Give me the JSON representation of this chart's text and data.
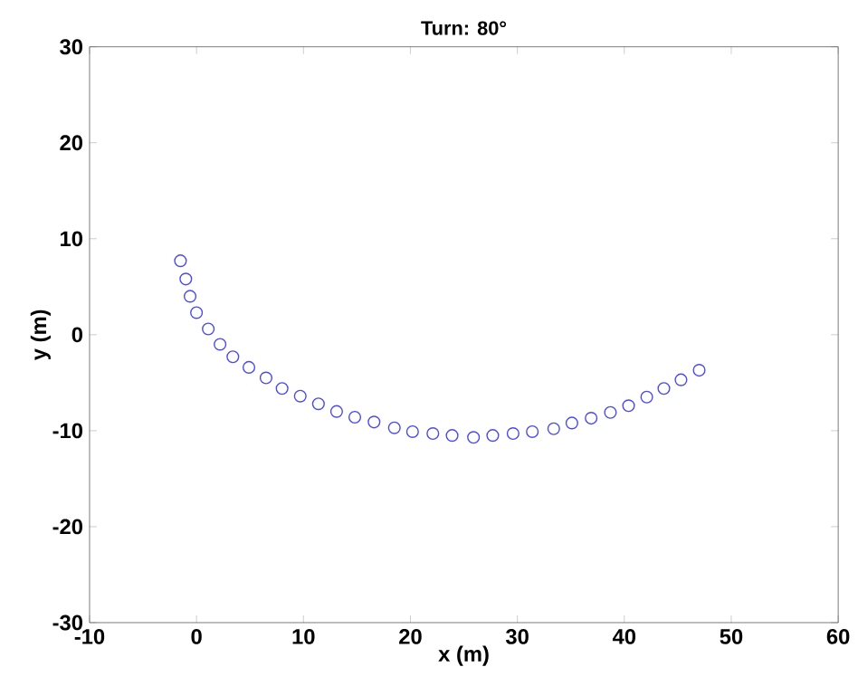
{
  "chart_data": {
    "type": "scatter",
    "title": "Turn:  80°",
    "xlabel": "x (m)",
    "ylabel": "y (m)",
    "xlim": [
      -10,
      60
    ],
    "ylim": [
      -30,
      30
    ],
    "xticks": [
      -10,
      0,
      10,
      20,
      30,
      40,
      50,
      60
    ],
    "yticks": [
      -30,
      -20,
      -10,
      0,
      10,
      20,
      30
    ],
    "marker": "circle",
    "series": [
      {
        "color": "#4a4af0",
        "x": [
          -1.5,
          -1.0,
          -0.6,
          0.0,
          1.1,
          2.2,
          3.4,
          4.9,
          6.5,
          8.0,
          9.7,
          11.4,
          13.1,
          14.8,
          16.6,
          18.5,
          20.2,
          22.1,
          23.9,
          25.9,
          27.7,
          29.6,
          31.4,
          33.4,
          35.1,
          36.9,
          38.7,
          40.4,
          42.1,
          43.7,
          45.3,
          47.0
        ],
        "values": [
          7.7,
          5.8,
          4.0,
          2.3,
          0.6,
          -1.0,
          -2.3,
          -3.4,
          -4.5,
          -5.6,
          -6.4,
          -7.2,
          -8.0,
          -8.6,
          -9.1,
          -9.7,
          -10.1,
          -10.3,
          -10.5,
          -10.7,
          -10.5,
          -10.3,
          -10.1,
          -9.8,
          -9.2,
          -8.7,
          -8.1,
          -7.4,
          -6.5,
          -5.6,
          -4.7,
          -3.7
        ]
      }
    ]
  }
}
